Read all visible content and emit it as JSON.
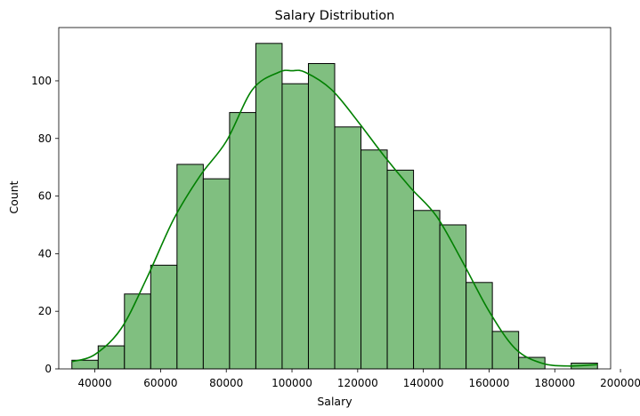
{
  "chart_data": {
    "type": "bar",
    "title": "Salary Distribution",
    "xlabel": "Salary",
    "ylabel": "Count",
    "bin_start": 33000,
    "bin_width": 8000,
    "values": [
      3,
      8,
      26,
      36,
      71,
      66,
      89,
      113,
      99,
      106,
      84,
      76,
      69,
      55,
      50,
      30,
      13,
      4,
      0,
      2
    ],
    "xlim": [
      29000,
      197000
    ],
    "ylim": [
      0,
      118.5
    ],
    "xticks": [
      40000,
      60000,
      80000,
      100000,
      120000,
      140000,
      160000,
      180000,
      200000
    ],
    "yticks": [
      0,
      20,
      40,
      60,
      80,
      100
    ],
    "kde": {
      "x": [
        33000,
        40000,
        48000,
        56000,
        64000,
        72000,
        80000,
        88000,
        96000,
        100000,
        104000,
        112000,
        120000,
        128000,
        136000,
        144000,
        152000,
        160000,
        168000,
        176000,
        184000,
        193000
      ],
      "y": [
        2.5,
        5,
        14,
        32,
        52,
        67,
        79,
        97,
        103,
        103.5,
        103,
        97,
        86,
        74,
        63,
        53,
        37,
        20,
        7,
        2,
        1,
        1.5
      ]
    },
    "grid": false,
    "legend": "none",
    "colors": {
      "bar_fill": "#80bf80",
      "bar_edge": "#000000",
      "kde_line": "#008000"
    }
  }
}
